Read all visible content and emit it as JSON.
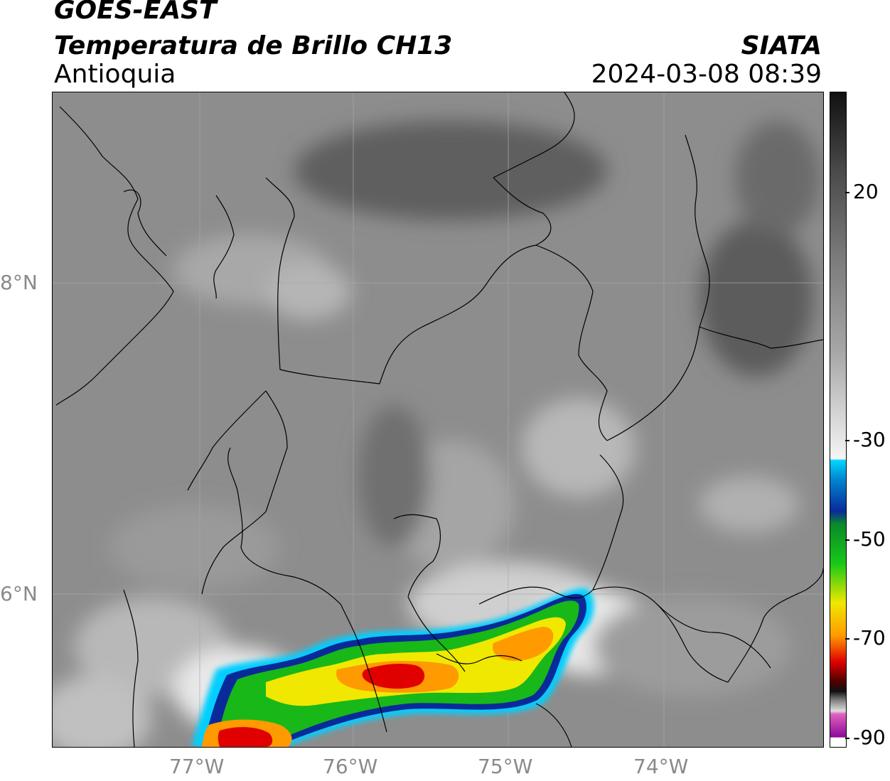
{
  "header": {
    "satellite": "GOES-EAST",
    "product": "Temperatura de Brillo CH13",
    "region": "Antioquia",
    "agency": "SIATA",
    "datetime": "2024-03-08 08:39"
  },
  "axes": {
    "lat_labels": [
      "8°N",
      "6°N"
    ],
    "lon_labels": [
      "77°W",
      "76°W",
      "75°W",
      "74°W"
    ]
  },
  "colorbar": {
    "ticks": [
      "20",
      "-30",
      "-50",
      "-70",
      "-90"
    ],
    "colors": {
      "warm_dark": "#1a1a1a",
      "mid_gray": "#9a9a9a",
      "white": "#f5f5f5",
      "cyan": "#00d8ff",
      "blue": "#0a2a9a",
      "green": "#18b818",
      "yellow": "#f0e800",
      "orange": "#ff9a00",
      "red": "#e00000",
      "dark_red": "#500000",
      "pink": "#e060c0",
      "purple": "#8a0a9a"
    }
  }
}
